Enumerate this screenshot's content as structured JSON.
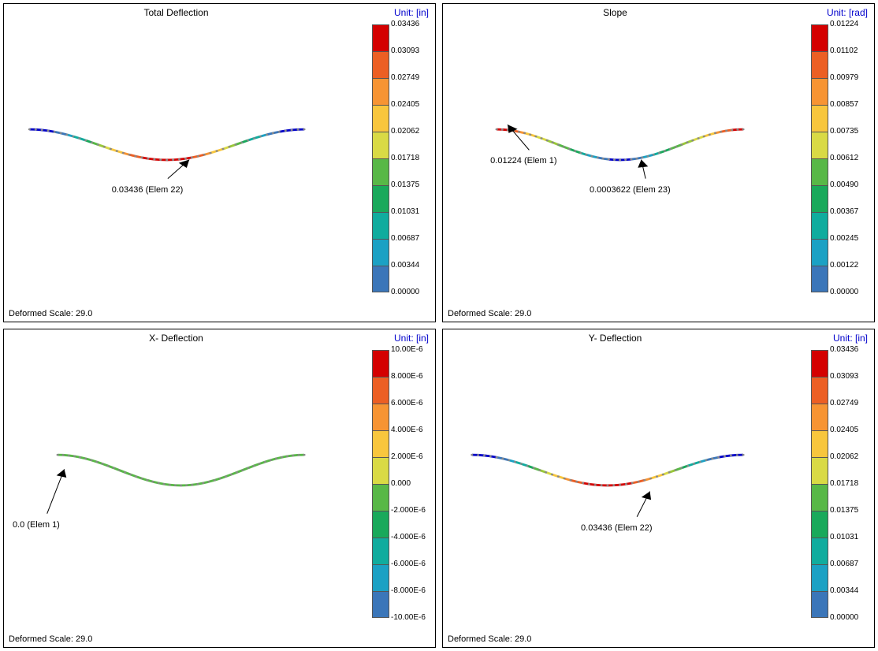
{
  "colorbar_colors": [
    "#d40000",
    "#ec5f24",
    "#f79433",
    "#f8c63d",
    "#d9da45",
    "#9ac93a",
    "#58b847",
    "#19a95b",
    "#10ac9e",
    "#1ba1c4",
    "#3b76b9",
    "#0000c8"
  ],
  "panels": [
    {
      "title": "Total Deflection",
      "unit": "Unit: [in]",
      "deformed": "Deformed Scale: 29.0",
      "ticks": [
        "0.03436",
        "0.03093",
        "0.02749",
        "0.02405",
        "0.02062",
        "0.01718",
        "0.01375",
        "0.01031",
        "0.00687",
        "0.00344",
        "0.00000"
      ],
      "annotation": {
        "text": "0.03436 (Elem 22)",
        "left_pct": 25,
        "top_pct": 57
      },
      "arrow": {
        "x1_pct": 38,
        "y1_pct": 55,
        "x2_pct": 43,
        "y2_pct": 49
      },
      "beam_mode": "center_peak",
      "plot_x_min_pct": 5,
      "plot_x_max_pct": 83
    },
    {
      "title": "Slope",
      "unit": "Unit: [rad]",
      "deformed": "Deformed Scale: 29.0",
      "ticks": [
        "0.01224",
        "0.01102",
        "0.00979",
        "0.00857",
        "0.00735",
        "0.00612",
        "0.00490",
        "0.00367",
        "0.00245",
        "0.00122",
        "0.00000"
      ],
      "annotation": {
        "text": "0.01224 (Elem 1)",
        "left_pct": 11,
        "top_pct": 48
      },
      "arrow": {
        "x1_pct": 20,
        "y1_pct": 46,
        "x2_pct": 15,
        "y2_pct": 38
      },
      "annotation2": {
        "text": "0.0003622 (Elem 23)",
        "left_pct": 34,
        "top_pct": 57
      },
      "arrow2": {
        "x1_pct": 47,
        "y1_pct": 55,
        "x2_pct": 46,
        "y2_pct": 49
      },
      "beam_mode": "end_peak",
      "plot_x_min_pct": 13,
      "plot_x_max_pct": 83
    },
    {
      "title": "X- Deflection",
      "unit": "Unit: [in]",
      "deformed": "Deformed Scale: 29.0",
      "ticks": [
        "10.00E-6",
        "8.000E-6",
        "6.000E-6",
        "4.000E-6",
        "2.000E-6",
        "0.000",
        "-2.000E-6",
        "-4.000E-6",
        "-6.000E-6",
        "-8.000E-6",
        "-10.00E-6"
      ],
      "annotation": {
        "text": "0.0 (Elem 1)",
        "left_pct": 2,
        "top_pct": 60
      },
      "arrow": {
        "x1_pct": 10,
        "y1_pct": 58,
        "x2_pct": 14,
        "y2_pct": 44
      },
      "beam_mode": "uniform_mid",
      "plot_x_min_pct": 13,
      "plot_x_max_pct": 83
    },
    {
      "title": "Y- Deflection",
      "unit": "Unit: [in]",
      "deformed": "Deformed Scale: 29.0",
      "ticks": [
        "0.03436",
        "0.03093",
        "0.02749",
        "0.02405",
        "0.02062",
        "0.01718",
        "0.01375",
        "0.01031",
        "0.00687",
        "0.00344",
        "0.00000"
      ],
      "annotation": {
        "text": "0.03436 (Elem 22)",
        "left_pct": 32,
        "top_pct": 61
      },
      "arrow": {
        "x1_pct": 45,
        "y1_pct": 59,
        "x2_pct": 48,
        "y2_pct": 51
      },
      "beam_mode": "center_peak",
      "plot_x_min_pct": 6,
      "plot_x_max_pct": 83
    }
  ],
  "beam": {
    "num_points": 45
  }
}
